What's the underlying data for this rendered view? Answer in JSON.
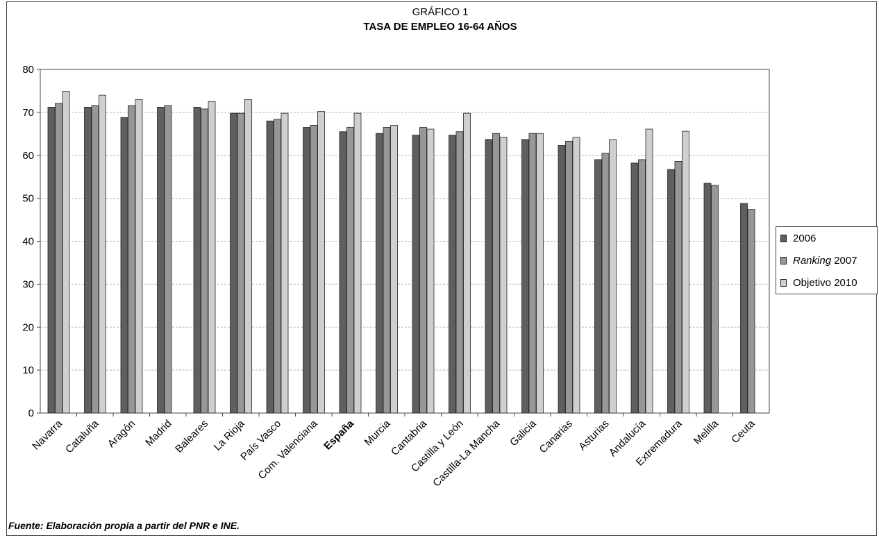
{
  "chart_data": {
    "type": "bar",
    "supertitle": "GRÁFICO 1",
    "title": "TASA DE EMPLEO 16-64 AÑOS",
    "categories": [
      "Navarra",
      "Cataluña",
      "Aragón",
      "Madrid",
      "Baleares",
      "La Rioja",
      "País Vasco",
      "Com. Valenciana",
      "España",
      "Murcia",
      "Cantabria",
      "Castilla y León",
      "Castilla-La Mancha",
      "Galicia",
      "Canarias",
      "Asturias",
      "Andalucía",
      "Extremadura",
      "Melilla",
      "Ceuta"
    ],
    "highlight_category": "España",
    "ylim": [
      0,
      80
    ],
    "yticks": [
      0,
      10,
      20,
      30,
      40,
      50,
      60,
      70,
      80
    ],
    "grid": "horizontal dashed",
    "legend_position": "right",
    "series": [
      {
        "name": "2006",
        "color": "#5f5f5f",
        "values": [
          71.2,
          71.2,
          68.8,
          71.2,
          71.2,
          69.8,
          68.0,
          66.5,
          65.5,
          65.1,
          64.7,
          64.7,
          63.7,
          63.7,
          62.3,
          59.0,
          58.2,
          56.7,
          53.5,
          48.8
        ]
      },
      {
        "name": "Ranking 2007",
        "name_italic": "Ranking",
        "name_rest": " 2007",
        "color": "#979797",
        "values": [
          72.1,
          71.6,
          71.6,
          71.6,
          70.8,
          69.8,
          68.4,
          67.0,
          66.5,
          66.5,
          66.5,
          65.5,
          65.1,
          65.1,
          63.3,
          60.5,
          59.0,
          58.6,
          53.0,
          47.4
        ]
      },
      {
        "name": "Objetivo 2010",
        "color": "#cfcfcf",
        "values": [
          74.9,
          74.0,
          73.0,
          null,
          72.5,
          73.0,
          69.8,
          70.2,
          69.8,
          67.0,
          66.1,
          69.8,
          64.2,
          65.1,
          64.2,
          63.7,
          66.1,
          65.6,
          null,
          null
        ]
      }
    ]
  },
  "source_note": "Fuente: Elaboración propia a partir del PNR e INE."
}
